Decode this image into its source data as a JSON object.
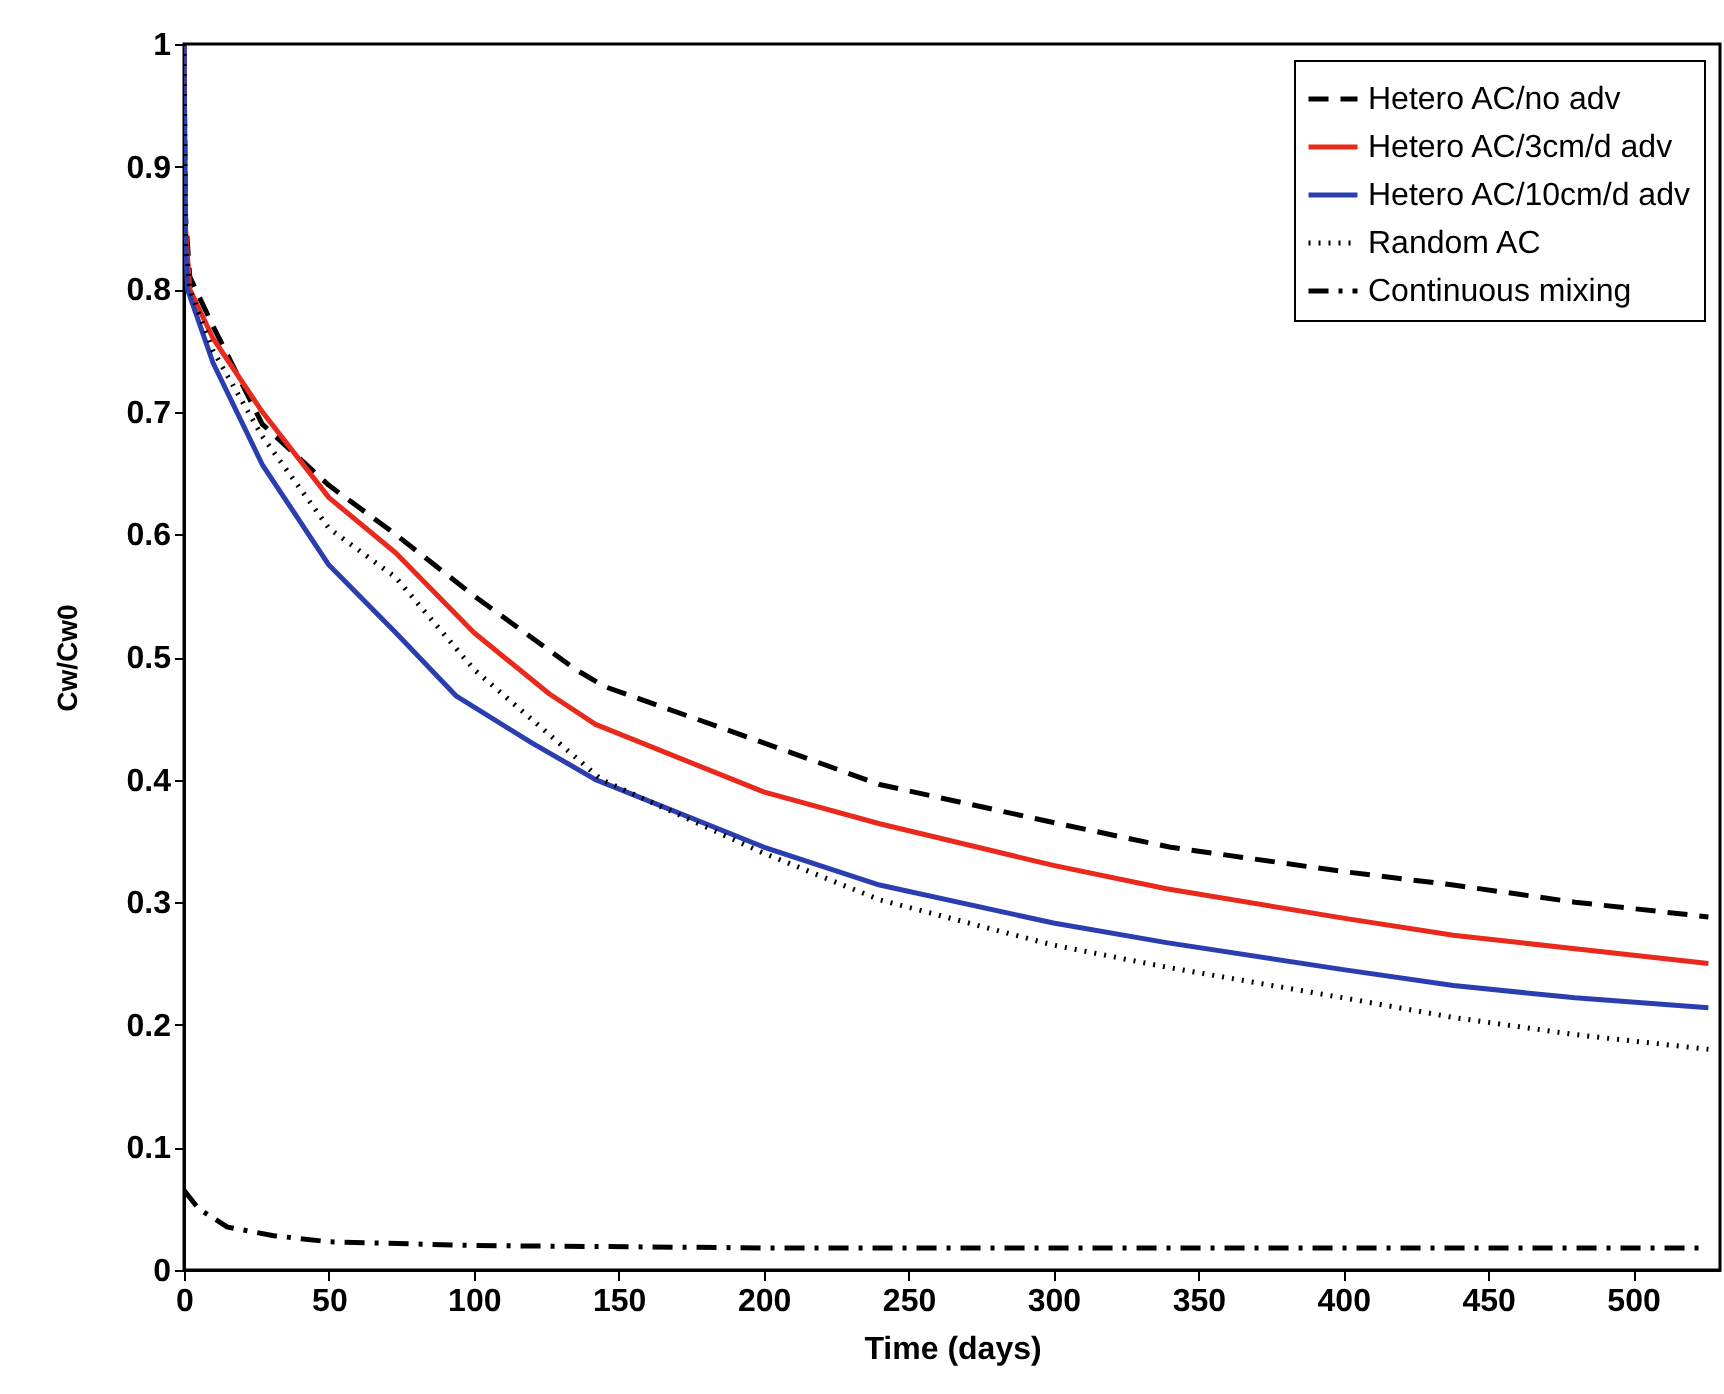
{
  "chart_data": {
    "type": "line",
    "xlabel": "Time (days)",
    "ylabel": "Cw/Cw0",
    "xlim": [
      0,
      530
    ],
    "ylim": [
      0,
      1
    ],
    "xticks": [
      0,
      50,
      100,
      150,
      200,
      250,
      300,
      350,
      400,
      450,
      500
    ],
    "yticks": [
      0,
      0.1,
      0.2,
      0.3,
      0.4,
      0.5,
      0.6,
      0.7,
      0.8,
      0.9,
      1
    ],
    "legend": "top right",
    "grid": false,
    "marker": "none",
    "series": [
      {
        "name": "Hetero AC/no adv",
        "color": "#000000",
        "line_style": "dashed",
        "x": [
          0,
          0.5,
          2,
          10,
          27,
          50,
          73,
          100,
          135,
          145,
          200,
          240,
          300,
          340,
          400,
          438,
          480,
          526
        ],
        "values": [
          1,
          0.86,
          0.81,
          0.77,
          0.69,
          0.64,
          0.6,
          0.55,
          0.49,
          0.476,
          0.43,
          0.396,
          0.365,
          0.345,
          0.325,
          0.314,
          0.3,
          0.288
        ]
      },
      {
        "name": "Hetero AC/3cm/d adv",
        "color": "#e8291c",
        "line_style": "solid",
        "x": [
          0,
          0.5,
          2,
          10,
          27,
          50,
          73,
          100,
          126,
          142,
          200,
          240,
          300,
          339,
          400,
          438,
          480,
          526
        ],
        "values": [
          1,
          0.85,
          0.8,
          0.76,
          0.7,
          0.63,
          0.585,
          0.52,
          0.47,
          0.445,
          0.39,
          0.364,
          0.33,
          0.311,
          0.287,
          0.273,
          0.262,
          0.25
        ]
      },
      {
        "name": "Hetero AC/10cm/d adv",
        "color": "#2b3eb0",
        "line_style": "solid",
        "x": [
          0,
          0.5,
          1.2,
          10,
          27,
          50,
          73,
          94,
          120,
          142,
          200,
          240,
          300,
          339,
          400,
          438,
          480,
          526
        ],
        "values": [
          1,
          0.84,
          0.8,
          0.74,
          0.657,
          0.575,
          0.52,
          0.468,
          0.43,
          0.4,
          0.345,
          0.314,
          0.283,
          0.267,
          0.245,
          0.232,
          0.222,
          0.214
        ]
      },
      {
        "name": "Random AC",
        "color": "#000000",
        "line_style": "dotted",
        "x": [
          0,
          0.5,
          2,
          10,
          27,
          50,
          73,
          100,
          144,
          200,
          240,
          300,
          339,
          400,
          438,
          480,
          526
        ],
        "values": [
          1,
          0.84,
          0.8,
          0.75,
          0.68,
          0.605,
          0.565,
          0.49,
          0.4,
          0.34,
          0.302,
          0.265,
          0.247,
          0.222,
          0.206,
          0.192,
          0.18
        ]
      },
      {
        "name": "Continuous mixing",
        "color": "#000000",
        "line_style": "dashdot",
        "x": [
          0,
          5,
          15,
          31,
          50,
          100,
          200,
          300,
          400,
          526
        ],
        "values": [
          0.065,
          0.05,
          0.035,
          0.028,
          0.023,
          0.02,
          0.018,
          0.018,
          0.018,
          0.018
        ]
      }
    ]
  }
}
